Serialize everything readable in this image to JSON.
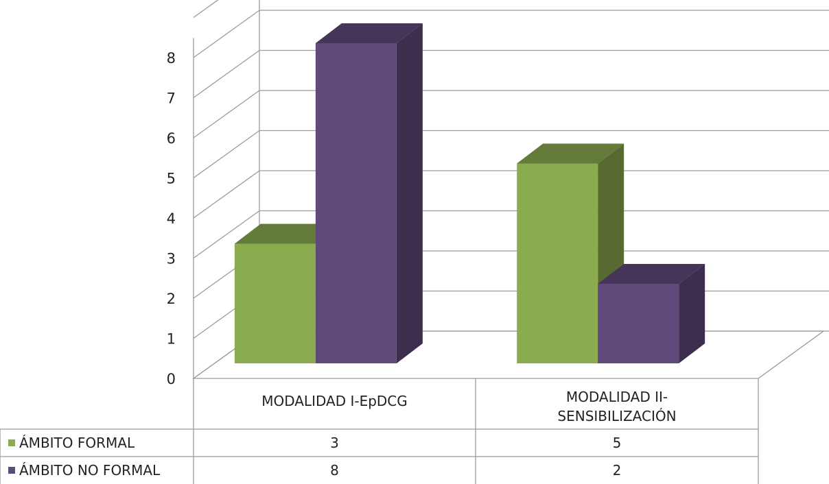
{
  "chart_data": {
    "type": "bar",
    "categories": [
      "MODALIDAD I-EpDCG",
      "MODALIDAD II-\nSENSIBILIZACIÓN"
    ],
    "series": [
      {
        "name": "ÁMBITO FORMAL",
        "values": [
          3,
          5
        ],
        "color": "#8bab4f"
      },
      {
        "name": "ÁMBITO NO FORMAL",
        "values": [
          8,
          2
        ],
        "color": "#604a7b"
      }
    ],
    "ylim": [
      0,
      8
    ],
    "yticks": [
      0,
      1,
      2,
      3,
      4,
      5,
      6,
      7,
      8
    ],
    "grid": true,
    "legend": "data-table"
  },
  "table": {
    "headers": [
      "MODALIDAD I-EpDCG",
      "MODALIDAD II-\nSENSIBILIZACIÓN"
    ],
    "rows": [
      {
        "label": "ÁMBITO FORMAL",
        "values": [
          "3",
          "5"
        ]
      },
      {
        "label": "ÁMBITO NO FORMAL",
        "values": [
          "8",
          "2"
        ]
      }
    ]
  }
}
